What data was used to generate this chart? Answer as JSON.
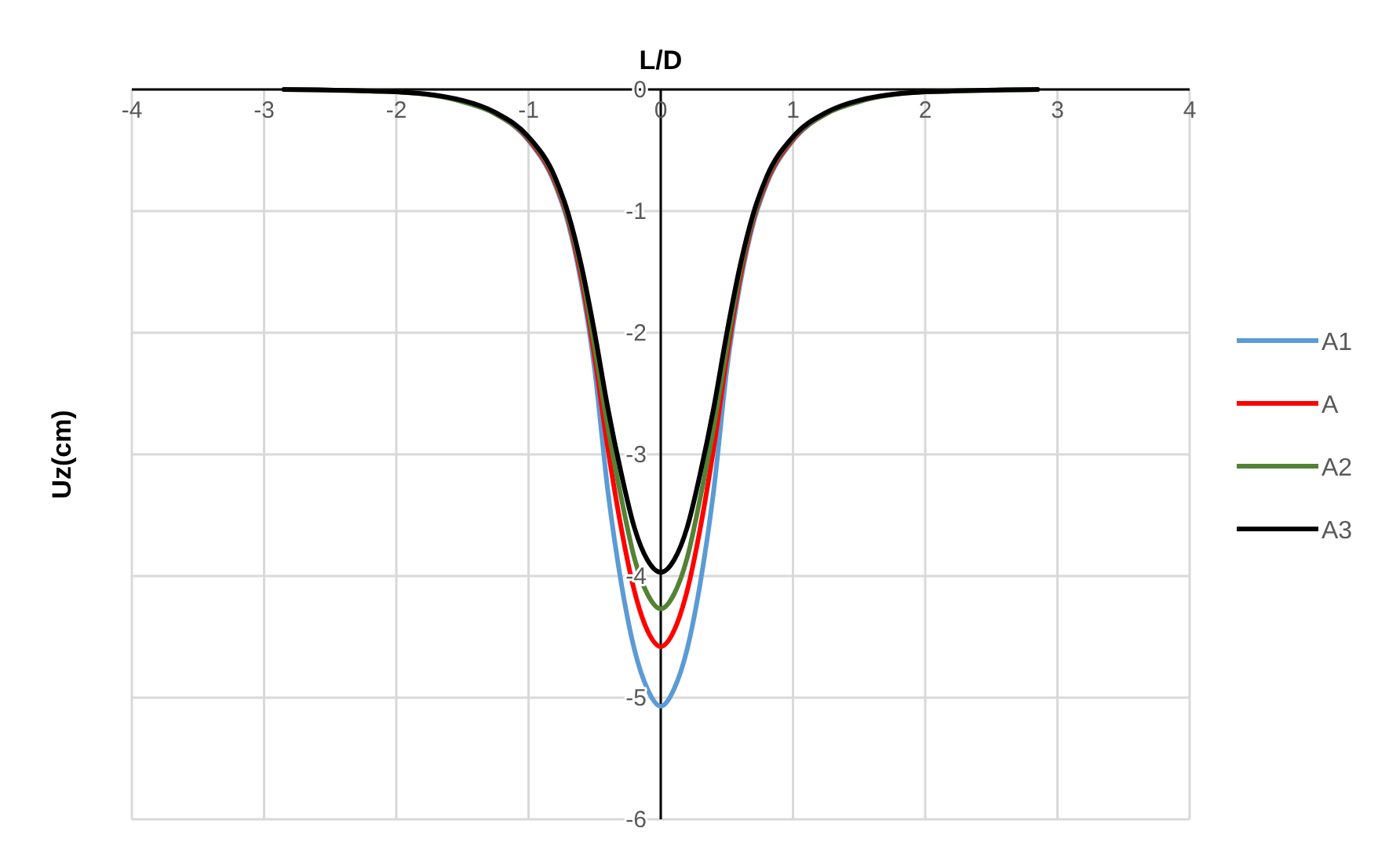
{
  "chart_data": {
    "type": "line",
    "xlabel": "L/D",
    "ylabel": "Uz(cm)",
    "x": [
      -2.85,
      -2,
      -1.5,
      -1.25,
      -1,
      -0.8,
      -0.7,
      -0.6,
      -0.5,
      -0.4,
      -0.3,
      -0.2,
      -0.1,
      0,
      0.1,
      0.2,
      0.3,
      0.4,
      0.5,
      0.6,
      0.7,
      0.8,
      1,
      1.25,
      1.5,
      2,
      2.85
    ],
    "series": [
      {
        "name": "A1",
        "color": "#5b9bd5",
        "values": [
          null,
          null,
          -0.1,
          -0.2,
          -0.42,
          -0.78,
          -1.1,
          -1.6,
          -2.3,
          -3.3,
          -4.05,
          -4.6,
          -4.93,
          -5.07,
          -4.93,
          -4.6,
          -4.05,
          -3.3,
          -2.3,
          -1.6,
          -1.1,
          -0.78,
          -0.42,
          -0.2,
          -0.1,
          null,
          null
        ]
      },
      {
        "name": "A",
        "color": "#ff0000",
        "values": [
          null,
          null,
          null,
          -0.2,
          -0.41,
          -0.76,
          -1.07,
          -1.55,
          -2.2,
          -2.95,
          -3.6,
          -4.12,
          -4.45,
          -4.58,
          -4.45,
          -4.12,
          -3.6,
          -2.95,
          -2.2,
          -1.55,
          -1.07,
          -0.76,
          -0.41,
          -0.2,
          null,
          null,
          null
        ]
      },
      {
        "name": "A2",
        "color": "#548235",
        "values": [
          0,
          -0.02,
          -0.1,
          -0.2,
          -0.4,
          -0.74,
          -1.05,
          -1.5,
          -2.12,
          -2.78,
          -3.35,
          -3.85,
          -4.15,
          -4.27,
          -4.15,
          -3.85,
          -3.35,
          -2.78,
          -2.12,
          -1.5,
          -1.05,
          -0.74,
          -0.4,
          -0.2,
          -0.1,
          -0.02,
          0
        ]
      },
      {
        "name": "A3",
        "color": "#000000",
        "values": [
          0,
          -0.02,
          -0.09,
          -0.19,
          -0.39,
          -0.72,
          -1.02,
          -1.45,
          -2.0,
          -2.62,
          -3.15,
          -3.6,
          -3.87,
          -3.97,
          -3.87,
          -3.6,
          -3.15,
          -2.62,
          -2.0,
          -1.45,
          -1.02,
          -0.72,
          -0.39,
          -0.19,
          -0.09,
          -0.02,
          0
        ]
      }
    ],
    "xlim": [
      -4,
      4
    ],
    "xticks": [
      -4,
      -3,
      -2,
      -1,
      0,
      1,
      2,
      3,
      4
    ],
    "ylim": [
      -6,
      0
    ],
    "yticks": [
      -6,
      -5,
      -4,
      -3,
      -2,
      -1,
      0
    ],
    "grid": true,
    "legend": "right",
    "marker": "none",
    "line_style": "solid"
  }
}
